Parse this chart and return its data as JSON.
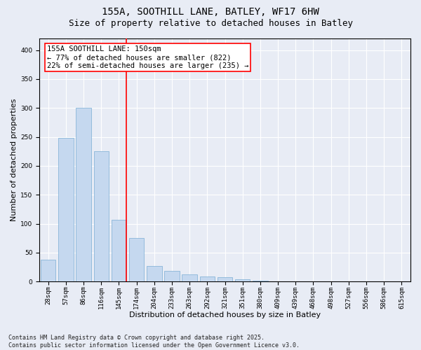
{
  "title_line1": "155A, SOOTHILL LANE, BATLEY, WF17 6HW",
  "title_line2": "Size of property relative to detached houses in Batley",
  "xlabel": "Distribution of detached houses by size in Batley",
  "ylabel": "Number of detached properties",
  "categories": [
    "28sqm",
    "57sqm",
    "86sqm",
    "116sqm",
    "145sqm",
    "174sqm",
    "204sqm",
    "233sqm",
    "263sqm",
    "292sqm",
    "321sqm",
    "351sqm",
    "380sqm",
    "409sqm",
    "439sqm",
    "468sqm",
    "498sqm",
    "527sqm",
    "556sqm",
    "586sqm",
    "615sqm"
  ],
  "values": [
    38,
    248,
    300,
    225,
    107,
    75,
    27,
    18,
    12,
    9,
    8,
    4,
    2,
    1,
    1,
    1,
    1,
    1,
    1,
    1,
    1
  ],
  "bar_color": "#c5d8ef",
  "bar_edge_color": "#7aadd4",
  "red_line_label": "155A SOOTHILL LANE: 150sqm",
  "annotation_line2": "← 77% of detached houses are smaller (822)",
  "annotation_line3": "22% of semi-detached houses are larger (235) →",
  "ylim": [
    0,
    420
  ],
  "yticks": [
    0,
    50,
    100,
    150,
    200,
    250,
    300,
    350,
    400
  ],
  "background_color": "#e8ecf5",
  "grid_color": "#ffffff",
  "footer_line1": "Contains HM Land Registry data © Crown copyright and database right 2025.",
  "footer_line2": "Contains public sector information licensed under the Open Government Licence v3.0.",
  "title_fontsize": 10,
  "subtitle_fontsize": 9,
  "axis_label_fontsize": 8,
  "tick_fontsize": 6.5,
  "annotation_fontsize": 7.5,
  "footer_fontsize": 6
}
